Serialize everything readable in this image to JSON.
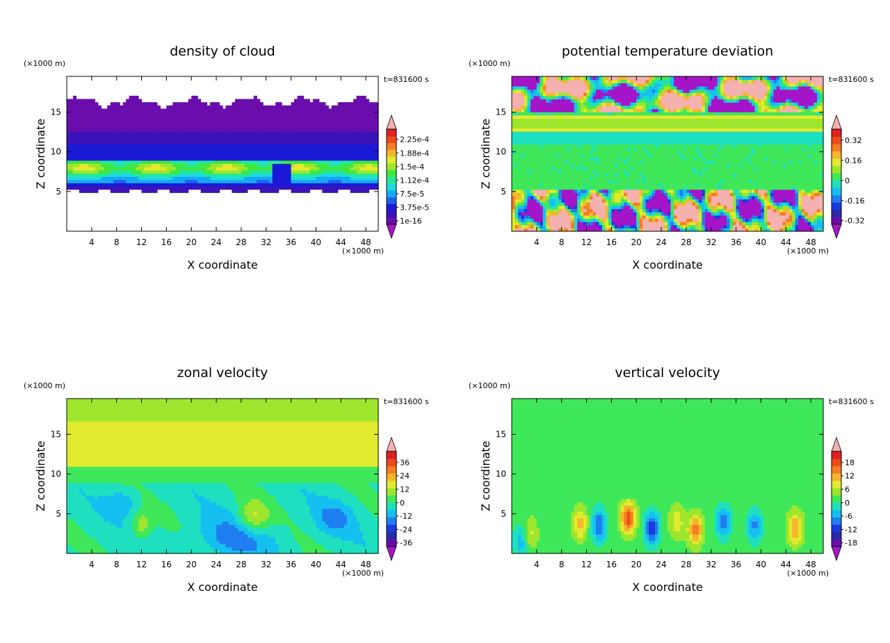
{
  "figure": {
    "background": "#ffffff"
  },
  "chart_data": [
    {
      "type": "heatmap",
      "title": "density of cloud",
      "xlabel": "X coordinate",
      "ylabel": "Z coordinate",
      "x_unit": "(×1000 m)",
      "y_unit": "(×1000 m)",
      "time_label": "t=831600 s",
      "xlim": [
        0,
        50
      ],
      "ylim": [
        0,
        19.5
      ],
      "xticks": [
        4,
        8,
        12,
        16,
        20,
        24,
        28,
        32,
        36,
        40,
        44,
        48
      ],
      "yticks": [
        5,
        10,
        15
      ],
      "colorbar": {
        "labels": [
          "2.25e-4",
          "1.88e-4",
          "1.5e-4",
          "1.12e-4",
          "7.5e-5",
          "3.75e-5",
          "1e-16"
        ],
        "colors": [
          "#6a0dad",
          "#3a14b8",
          "#1a1ad6",
          "#1f5ff0",
          "#15a8f5",
          "#1ed9e0",
          "#23e89a",
          "#3fe63f",
          "#9ee62e",
          "#e2ea2e",
          "#f5b62c",
          "#f57d22",
          "#ee4a19",
          "#de2020"
        ],
        "under_color": "#a515c8",
        "over_color": "#f5b0b0"
      },
      "field": "cloud density layer 5–16.5 km, peak ~1.3e-4 near 8 km"
    },
    {
      "type": "heatmap",
      "title": "potential temperature deviation",
      "xlabel": "X coordinate",
      "ylabel": "Z coordinate",
      "x_unit": "(×1000 m)",
      "y_unit": "(×1000 m)",
      "time_label": "t=831600 s",
      "xlim": [
        0,
        50
      ],
      "ylim": [
        0,
        19.5
      ],
      "xticks": [
        4,
        8,
        12,
        16,
        20,
        24,
        28,
        32,
        36,
        40,
        44,
        48
      ],
      "yticks": [
        5,
        10,
        15
      ],
      "colorbar": {
        "labels": [
          "0.32",
          "0.16",
          "0",
          "-0.16",
          "-0.32"
        ],
        "colors": [
          "#6a0dad",
          "#2a2aa8",
          "#1a3ae0",
          "#1f7ef0",
          "#15c0f0",
          "#1ee0c0",
          "#3ee85a",
          "#9ee62e",
          "#e2ea2e",
          "#f5b62c",
          "#f57d22",
          "#ee4a19",
          "#de2020"
        ],
        "under_color": "#a515c8",
        "over_color": "#f5b0b0"
      },
      "field": "near-zero mid-levels, strong ± anomalies above 15 km and below 5 km"
    },
    {
      "type": "heatmap",
      "title": "zonal velocity",
      "xlabel": "X coordinate",
      "ylabel": "Z coordinate",
      "x_unit": "(×1000 m)",
      "y_unit": "(×1000 m)",
      "time_label": "t=831600 s",
      "xlim": [
        0,
        50
      ],
      "ylim": [
        0,
        19.5
      ],
      "xticks": [
        4,
        8,
        12,
        16,
        20,
        24,
        28,
        32,
        36,
        40,
        44,
        48
      ],
      "yticks": [
        5,
        10,
        15
      ],
      "colorbar": {
        "labels": [
          "36",
          "24",
          "12",
          "0",
          "-12",
          "-24",
          "-36"
        ],
        "colors": [
          "#6a0dad",
          "#2a2aa8",
          "#1a3ae0",
          "#1f7ef0",
          "#15c0f0",
          "#1ee0c0",
          "#3ee85a",
          "#9ee62e",
          "#e2ea2e",
          "#f5b62c",
          "#f57d22",
          "#ee4a19",
          "#de2020"
        ],
        "under_color": "#a515c8",
        "over_color": "#f5b0b0"
      },
      "field": "weak positive band 11–16 km, slight negative below 10 km"
    },
    {
      "type": "heatmap",
      "title": "vertical velocity",
      "xlabel": "X coordinate",
      "ylabel": "Z coordinate",
      "x_unit": "(×1000 m)",
      "y_unit": "(×1000 m)",
      "time_label": "t=831600 s",
      "xlim": [
        0,
        50
      ],
      "ylim": [
        0,
        19.5
      ],
      "xticks": [
        4,
        8,
        12,
        16,
        20,
        24,
        28,
        32,
        36,
        40,
        44,
        48
      ],
      "yticks": [
        5,
        10,
        15
      ],
      "colorbar": {
        "labels": [
          "18",
          "12",
          "6",
          "0",
          "-6",
          "-12",
          "-18"
        ],
        "colors": [
          "#6a0dad",
          "#2a2aa8",
          "#1a3ae0",
          "#1f7ef0",
          "#15c0f0",
          "#1ee0c0",
          "#3ee85a",
          "#9ee62e",
          "#e2ea2e",
          "#f5b62c",
          "#f57d22",
          "#ee4a19",
          "#de2020"
        ],
        "under_color": "#a515c8",
        "over_color": "#f5b0b0"
      },
      "field": "alternating updraft/downdraft cells below 6 km"
    }
  ]
}
